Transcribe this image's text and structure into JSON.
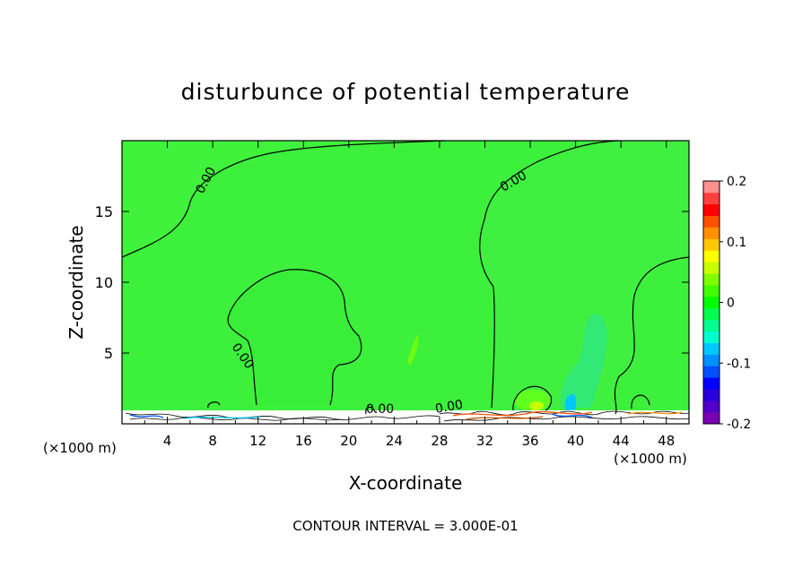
{
  "chart_data": {
    "type": "heatmap",
    "title": "disturbunce of potential temperature",
    "xlabel": "X-coordinate",
    "ylabel": "Z-coordinate",
    "x_unit_left": "(×1000 m)",
    "x_unit_right": "(×1000 m)",
    "footer": "CONTOUR INTERVAL = 3.000E-01",
    "xlim": [
      0,
      50
    ],
    "ylim": [
      0,
      20
    ],
    "x_ticks": [
      4,
      8,
      12,
      16,
      20,
      24,
      28,
      32,
      36,
      40,
      44,
      48
    ],
    "y_ticks": [
      5,
      10,
      15
    ],
    "contour_labels": [
      "0.00",
      "0.00",
      "0.00",
      "0.00",
      "0.00"
    ],
    "colorbar": {
      "min": -0.2,
      "max": 0.2,
      "tick_labels": [
        "0.2",
        "0.1",
        "0",
        "-0.1",
        "-0.2"
      ],
      "tick_values": [
        0.2,
        0.1,
        0,
        -0.1,
        -0.2
      ],
      "colors": [
        "#7a00b4",
        "#5000c8",
        "#2800dc",
        "#0000ff",
        "#0050ff",
        "#0090ff",
        "#00c8ff",
        "#00ffd0",
        "#00ff90",
        "#00ff50",
        "#00ff00",
        "#40ff00",
        "#80ff00",
        "#c8ff00",
        "#ffff00",
        "#ffc800",
        "#ff9000",
        "#ff5000",
        "#ff0000",
        "#ff4040",
        "#ff9090"
      ]
    },
    "background_value": 0
  }
}
